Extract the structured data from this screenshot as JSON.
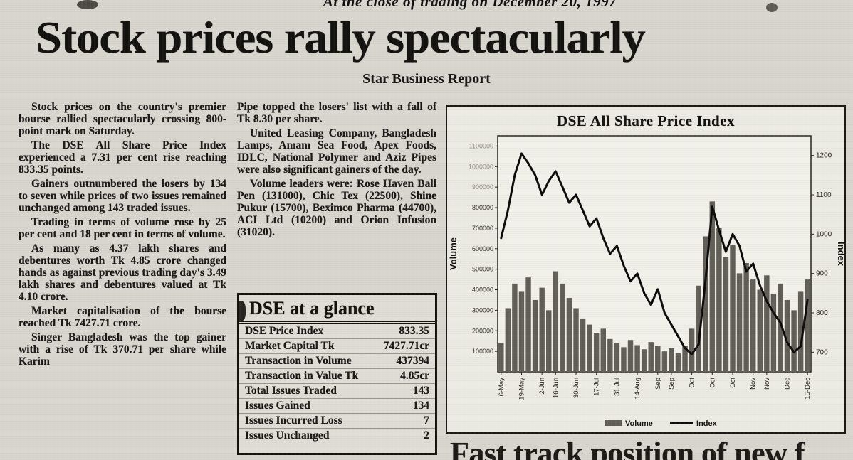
{
  "page": {
    "top_cut_line": "At the close of trading on December 20, 1997",
    "headline": "Stock prices rally spectacularly",
    "byline": "Star Business Report",
    "bottom_partial_headline": "Fast track position of new f"
  },
  "article": {
    "left_column": [
      "Stock prices on the country's premier bourse rallied spectacularly crossing 800-point mark on Saturday.",
      "The DSE All Share Price Index experienced a 7.31 per cent rise reaching 833.35 points.",
      "Gainers outnumbered the losers by 134 to seven while prices of two issues remained unchanged among 143 traded issues.",
      "Trading in terms of volume rose by 25 per cent and 18 per cent in terms of volume.",
      "As many as 4.37 lakh shares and debentures worth Tk 4.85 crore changed hands as against previous trading day's 3.49 lakh shares and debentures valued at Tk 4.10 crore.",
      "Market capitalisation of the bourse reached Tk 7427.71 crore.",
      "Singer Bangladesh was the top gainer with a rise of Tk 370.71 per share while Karim"
    ],
    "middle_column": [
      "Pipe topped the losers' list with a fall of Tk 8.30 per share.",
      "United Leasing Company, Bangladesh Lamps, Amam Sea Food, Apex Foods, IDLC, National Polymer and Aziz Pipes were also significant gainers of the day.",
      "Volume leaders were: Rose Haven Ball Pen (131000), Chic Tex (22500), Shine Pukur (15700), Beximco Pharma (44700), ACI Ltd (10200) and Orion Infusion (31020)."
    ]
  },
  "glance_box": {
    "title": "DSE at a glance",
    "rows": [
      {
        "label": "DSE Price Index",
        "value": "833.35"
      },
      {
        "label": "Market Capital Tk",
        "value": "7427.71cr"
      },
      {
        "label": "Transaction in Volume",
        "value": "437394"
      },
      {
        "label": "Transaction in Value Tk",
        "value": "4.85cr"
      },
      {
        "label": "Total Issues Traded",
        "value": "143"
      },
      {
        "label": "Issues Gained",
        "value": "134"
      },
      {
        "label": "Issues Incurred Loss",
        "value": "7"
      },
      {
        "label": "Issues Unchanged",
        "value": "2"
      }
    ]
  },
  "chart_data": {
    "type": "bar",
    "title": "DSE All Share Price Index",
    "ylabel_left": "Volume",
    "ylabel_right": "Index",
    "legend": [
      "Volume",
      "Index"
    ],
    "legend_position": "bottom",
    "grid": false,
    "x_tick_labels": [
      "6-May",
      "19-May",
      "2-Jun",
      "16-Jun",
      "30-Jun",
      "17-Jul",
      "31-Jul",
      "14-Aug",
      "Sep",
      "Sep",
      "Oct",
      "Oct",
      "Oct",
      "Nov",
      "Nov",
      "Dec",
      "15-Dec"
    ],
    "left_axis": {
      "label": "Volume",
      "plot_min": 0,
      "plot_max": 1150000,
      "ticks": [
        100000,
        200000,
        300000,
        400000,
        500000,
        600000,
        700000,
        800000,
        900000,
        1000000,
        1100000
      ]
    },
    "right_axis": {
      "label": "Index",
      "plot_min": 650,
      "plot_max": 1250,
      "ticks": [
        700,
        800,
        900,
        1000,
        1100,
        1200
      ]
    },
    "series": [
      {
        "name": "Volume",
        "kind": "bar",
        "values": [
          140000,
          310000,
          430000,
          390000,
          460000,
          350000,
          410000,
          300000,
          490000,
          430000,
          360000,
          310000,
          260000,
          230000,
          190000,
          210000,
          160000,
          140000,
          120000,
          155000,
          130000,
          110000,
          145000,
          125000,
          100000,
          115000,
          90000,
          125000,
          210000,
          420000,
          660000,
          830000,
          700000,
          560000,
          620000,
          480000,
          530000,
          450000,
          400000,
          470000,
          380000,
          430000,
          350000,
          300000,
          390000,
          450000
        ]
      },
      {
        "name": "Index",
        "kind": "line",
        "values": [
          990,
          1060,
          1150,
          1205,
          1180,
          1150,
          1100,
          1135,
          1160,
          1120,
          1080,
          1100,
          1060,
          1020,
          1040,
          990,
          950,
          970,
          920,
          880,
          900,
          850,
          820,
          860,
          800,
          770,
          740,
          710,
          695,
          720,
          880,
          1070,
          1010,
          955,
          1000,
          970,
          905,
          925,
          870,
          830,
          800,
          775,
          725,
          700,
          715,
          833
        ]
      }
    ],
    "final_value_note": "833.35 on 20 Dec"
  }
}
